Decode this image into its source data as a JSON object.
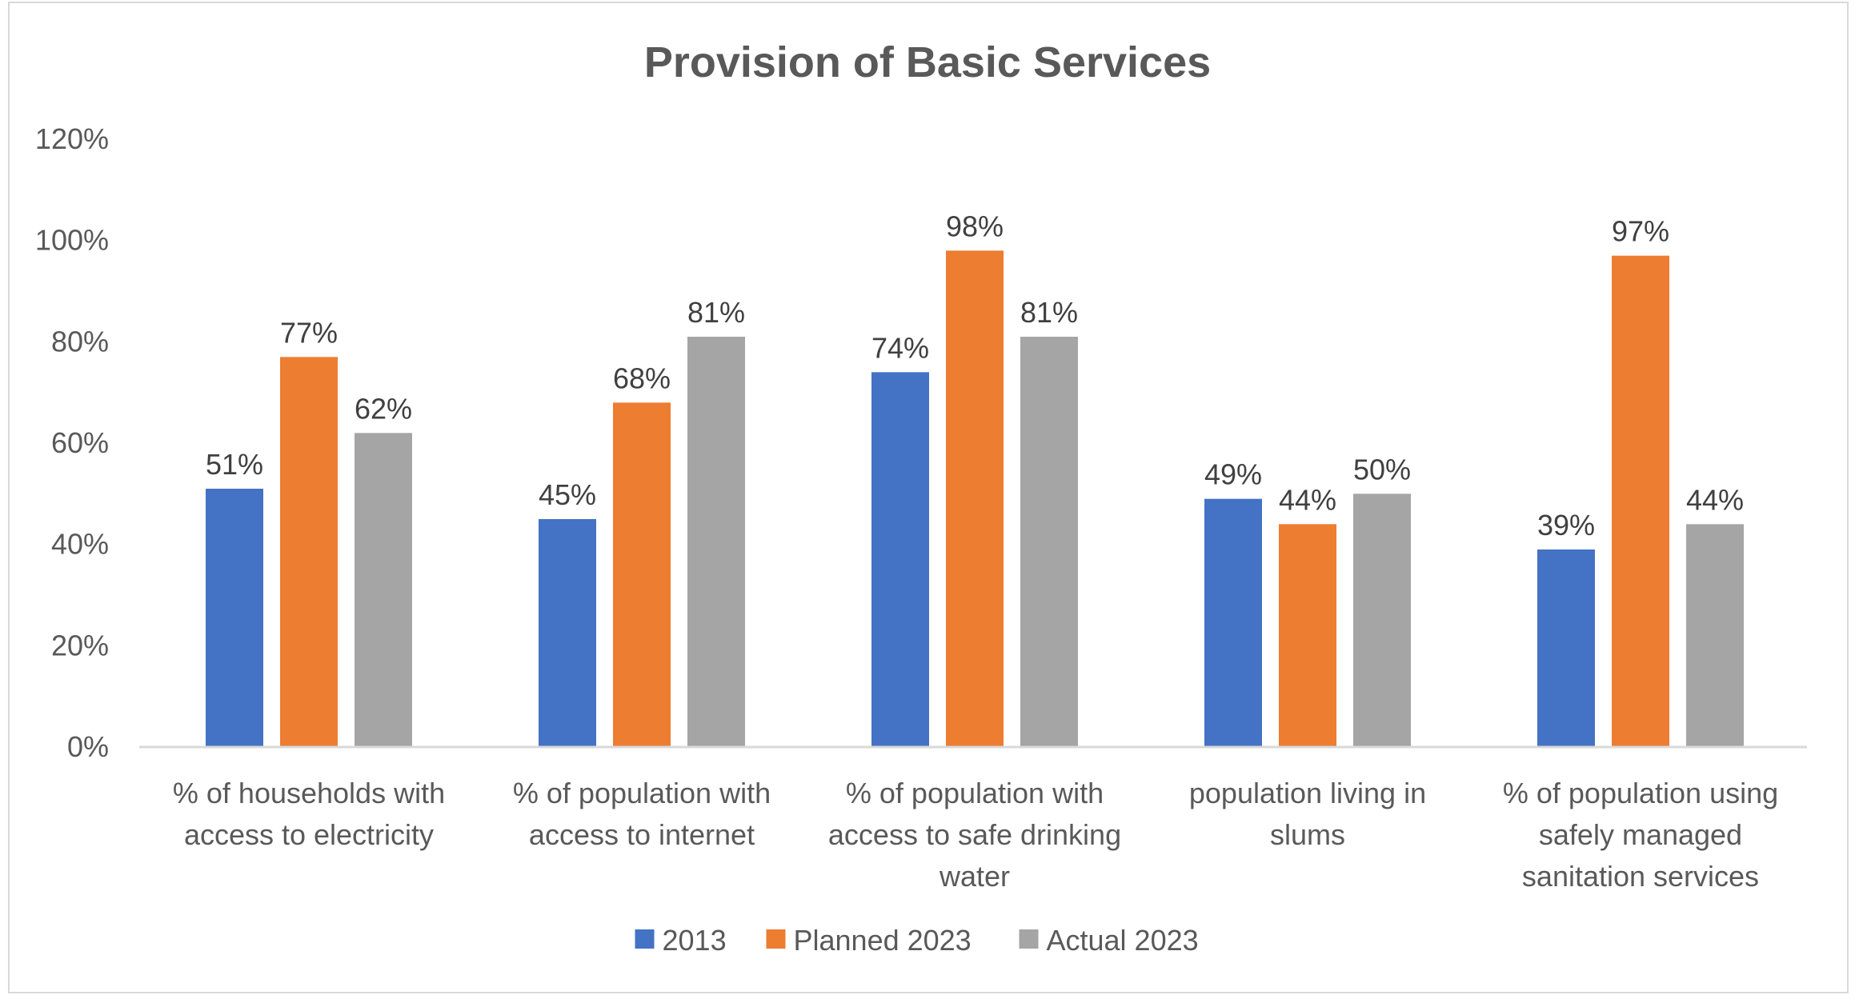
{
  "chart_data": {
    "type": "bar",
    "title": "Provision of Basic Services",
    "xlabel": "",
    "ylabel": "",
    "ylim": [
      0,
      1.2
    ],
    "yticks": [
      0,
      0.2,
      0.4,
      0.6,
      0.8,
      1.0,
      1.2
    ],
    "ytick_labels": [
      "0%",
      "20%",
      "40%",
      "60%",
      "80%",
      "100%",
      "120%"
    ],
    "grid": false,
    "legend_position": "bottom",
    "categories": [
      [
        "% of households with",
        "access to electricity"
      ],
      [
        "% of population with",
        "access to internet"
      ],
      [
        "% of population with",
        "access to safe drinking",
        "water"
      ],
      [
        "population living in",
        "slums"
      ],
      [
        "% of population using",
        "safely managed",
        "sanitation services"
      ]
    ],
    "series": [
      {
        "name": "2013",
        "color": "#4472c4",
        "values": [
          0.51,
          0.45,
          0.74,
          0.49,
          0.39
        ],
        "labels": [
          "51%",
          "45%",
          "74%",
          "49%",
          "39%"
        ]
      },
      {
        "name": "Planned 2023",
        "color": "#ed7d31",
        "values": [
          0.77,
          0.68,
          0.98,
          0.44,
          0.97
        ],
        "labels": [
          "77%",
          "68%",
          "98%",
          "44%",
          "97%"
        ]
      },
      {
        "name": "Actual 2023",
        "color": "#a5a5a5",
        "values": [
          0.62,
          0.81,
          0.81,
          0.5,
          0.44
        ],
        "labels": [
          "62%",
          "81%",
          "81%",
          "50%",
          "44%"
        ]
      }
    ]
  }
}
